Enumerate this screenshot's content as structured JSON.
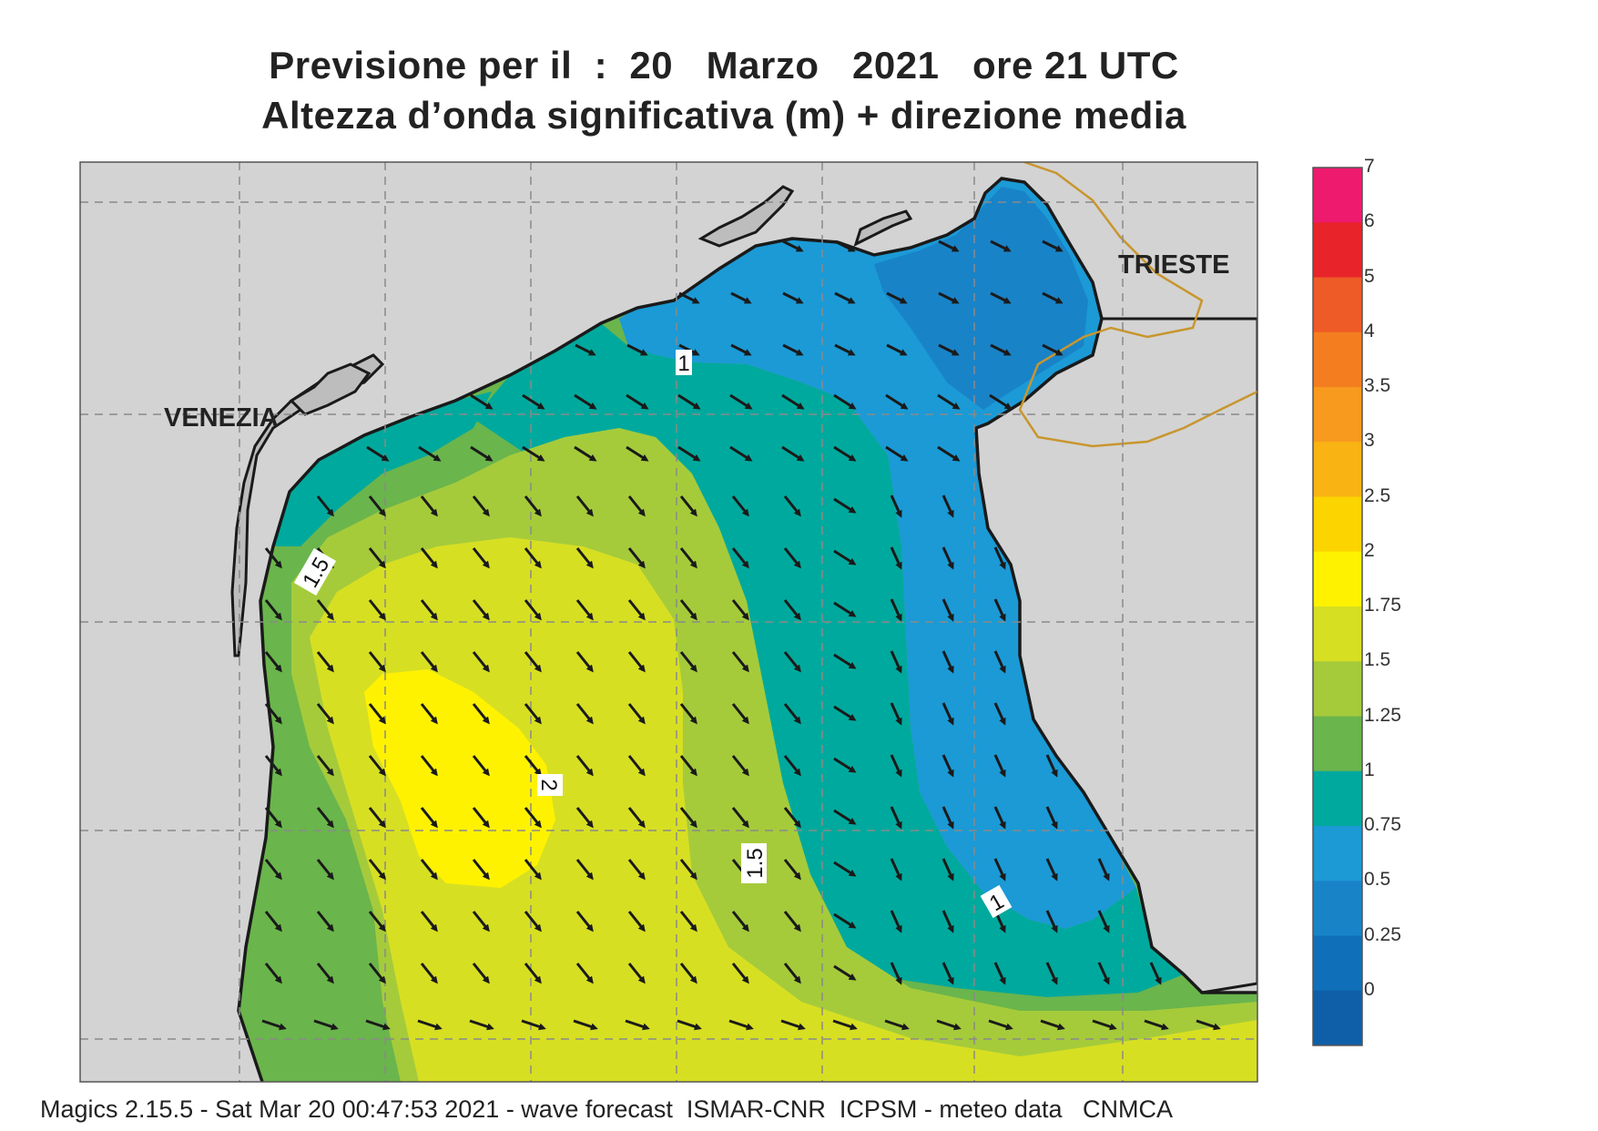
{
  "title": {
    "line1": "Previsione per il  :  20   Marzo   2021   ore 21 UTC",
    "line2": "Altezza d’onda significativa (m) + direzione media"
  },
  "map": {
    "cities": [
      "VENEZIA",
      "TRIESTE"
    ],
    "contour_labels": [
      "1",
      "1.5",
      "2",
      "1.5",
      "1"
    ],
    "land_color": "#d3d3d3",
    "coastline_color": "#1a1a1a",
    "border_color": "#c8962e"
  },
  "legend": {
    "labels": [
      "7",
      "6",
      "5",
      "4",
      "3.5",
      "3",
      "2.5",
      "2",
      "1.75",
      "1.5",
      "1.25",
      "1",
      "0.75",
      "0.5",
      "0.25",
      "0"
    ],
    "colors_top_to_bottom": [
      "#ee1a6e",
      "#e8232a",
      "#ee5b26",
      "#f47d20",
      "#f79a1e",
      "#f9b414",
      "#fcd400",
      "#fff200",
      "#d7df23",
      "#a5cb3b",
      "#6ab54c",
      "#00a99d",
      "#1b9ad6",
      "#1983c8",
      "#0f6fb8",
      "#0f5fa8"
    ]
  },
  "footer": {
    "text": "Magics 2.15.5 - Sat Mar 20 00:47:53 2021 - wave forecast  ISMAR-CNR  ICPSM - meteo data   CNMCA"
  }
}
